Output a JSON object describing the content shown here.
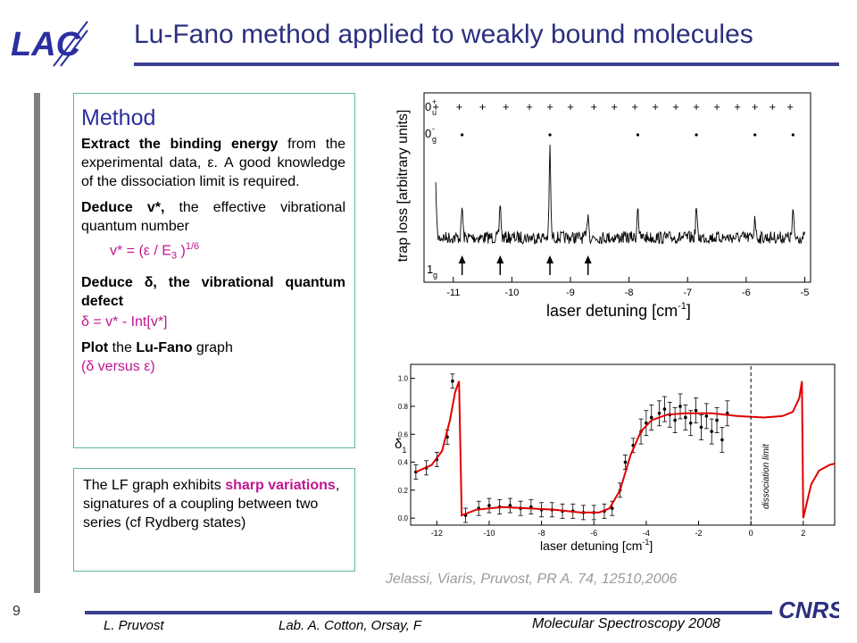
{
  "slide": {
    "title": "Lu-Fano method applied to weakly bound molecules",
    "logo_text": "LAC",
    "number": "9",
    "footer": {
      "author": "L. Pruvost",
      "lab": "Lab. A. Cotton, Orsay, F",
      "conference": "Molecular Spectroscopy  2008"
    },
    "cnrs_logo": "CNRS",
    "citation": "Jelassi, Viaris, Pruvost, PR A. 74, 12510,2006"
  },
  "method": {
    "heading": "Method",
    "p1_bold": "Extract the binding energy",
    "p1_rest": "from the experimental data, ε. A good knowledge of the dissociation limit  is required.",
    "p2_bold": "Deduce v*,",
    "p2_rest": "the effective vibrational quantum number",
    "vstar_formula": "v* = (ε / E",
    "vstar_sub": "3",
    "vstar_close": " )",
    "vstar_sup": "1/6",
    "p3_bold": "Deduce δ, the vibrational quantum defect",
    "delta_formula": "δ = v* - Int[v*]",
    "p4_bold1": "Plot",
    "p4_mid": "the",
    "p4_bold2": "Lu-Fano",
    "p4_rest": "graph",
    "p4_paren": "(δ versus ε)"
  },
  "lf_note": {
    "text_before": "The LF graph exhibits",
    "highlight": "sharp variations",
    "text_after": ", signatures of a coupling between two series (cf Rydberg states)"
  },
  "chart_data": [
    {
      "type": "line",
      "title": "",
      "xlabel": "laser detuning [cm",
      "xlabel_sup": "-1",
      "xlabel_close": "]",
      "ylabel": "trap loss [arbitrary units]",
      "xlim": [
        -11.5,
        -4.9
      ],
      "xticks": [
        "-11",
        "-10",
        "-9",
        "-8",
        "-7",
        "-6",
        "-5"
      ],
      "xtick_values": [
        -11,
        -10,
        -9,
        -8,
        -7,
        -6,
        -5
      ],
      "series_labels": [
        {
          "label": "0",
          "sup": "+",
          "sub": "u",
          "marker": "+"
        },
        {
          "label": "0",
          "sup": "-",
          "sub": "g",
          "marker": "."
        },
        {
          "label": "1",
          "sub": "g",
          "marker": "arrow"
        }
      ],
      "plus_positions": [
        -11.3,
        -10.9,
        -10.5,
        -10.1,
        -9.7,
        -9.35,
        -9.0,
        -8.6,
        -8.25,
        -7.9,
        -7.55,
        -7.2,
        -6.85,
        -6.5,
        -6.15,
        -5.85,
        -5.55,
        -5.25
      ],
      "dot_positions": [
        -10.85,
        -9.35,
        -7.85,
        -6.85,
        -5.85,
        -5.2
      ],
      "arrow_positions": [
        -10.85,
        -10.2,
        -9.35,
        -8.7
      ],
      "peaks": [
        {
          "x": -11.3,
          "h": 0.55
        },
        {
          "x": -10.85,
          "h": 0.35
        },
        {
          "x": -10.2,
          "h": 0.4
        },
        {
          "x": -9.35,
          "h": 1.0
        },
        {
          "x": -8.7,
          "h": 0.3
        },
        {
          "x": -7.85,
          "h": 0.38
        },
        {
          "x": -6.85,
          "h": 0.35
        },
        {
          "x": -5.85,
          "h": 0.25
        },
        {
          "x": -5.2,
          "h": 0.3
        }
      ]
    },
    {
      "type": "scatter",
      "title": "",
      "xlabel": "laser detuning   [cm",
      "xlabel_sup": "-1",
      "xlabel_close": "]",
      "ylabel": "δ",
      "ylabel_sub": "1",
      "xlim": [
        -13,
        3.2
      ],
      "ylim": [
        -0.05,
        1.1
      ],
      "xticks": [
        "-12",
        "-10",
        "-8",
        "-6",
        "-4",
        "-2",
        "0",
        "2"
      ],
      "xtick_values": [
        -12,
        -10,
        -8,
        -6,
        -4,
        -2,
        0,
        2
      ],
      "yticks": [
        "0.0",
        "0.2",
        "0.4",
        "0.6",
        "0.8",
        "1.0"
      ],
      "ytick_values": [
        0,
        0.2,
        0.4,
        0.6,
        0.8,
        1.0
      ],
      "annotation": "dissociation limit",
      "annotation_x": 0,
      "points": [
        [
          -12.8,
          0.33
        ],
        [
          -12.4,
          0.36
        ],
        [
          -12.0,
          0.42
        ],
        [
          -11.6,
          0.58
        ],
        [
          -11.4,
          0.98
        ],
        [
          -10.9,
          0.02
        ],
        [
          -10.4,
          0.07
        ],
        [
          -10.0,
          0.09
        ],
        [
          -9.6,
          0.08
        ],
        [
          -9.2,
          0.09
        ],
        [
          -8.8,
          0.07
        ],
        [
          -8.4,
          0.08
        ],
        [
          -8.0,
          0.06
        ],
        [
          -7.6,
          0.06
        ],
        [
          -7.2,
          0.05
        ],
        [
          -6.8,
          0.05
        ],
        [
          -6.4,
          0.04
        ],
        [
          -6.0,
          0.04
        ],
        [
          -5.6,
          0.05
        ],
        [
          -5.3,
          0.07
        ],
        [
          -5.0,
          0.2
        ],
        [
          -4.8,
          0.4
        ],
        [
          -4.5,
          0.52
        ],
        [
          -4.2,
          0.62
        ],
        [
          -4.0,
          0.68
        ],
        [
          -3.8,
          0.72
        ],
        [
          -3.5,
          0.75
        ],
        [
          -3.3,
          0.78
        ],
        [
          -3.1,
          0.74
        ],
        [
          -2.9,
          0.7
        ],
        [
          -2.7,
          0.8
        ],
        [
          -2.5,
          0.72
        ],
        [
          -2.3,
          0.68
        ],
        [
          -2.1,
          0.77
        ],
        [
          -1.9,
          0.65
        ],
        [
          -1.7,
          0.73
        ],
        [
          -1.5,
          0.62
        ],
        [
          -1.3,
          0.7
        ],
        [
          -1.1,
          0.56
        ],
        [
          -0.9,
          0.75
        ]
      ],
      "fit_curve": [
        [
          -12.8,
          0.33
        ],
        [
          -12.2,
          0.38
        ],
        [
          -11.8,
          0.48
        ],
        [
          -11.5,
          0.7
        ],
        [
          -11.3,
          0.9
        ],
        [
          -11.15,
          0.98
        ],
        [
          -11.05,
          0.02
        ],
        [
          -10.5,
          0.06
        ],
        [
          -9.5,
          0.08
        ],
        [
          -8.5,
          0.07
        ],
        [
          -7.5,
          0.06
        ],
        [
          -6.5,
          0.04
        ],
        [
          -5.8,
          0.04
        ],
        [
          -5.4,
          0.07
        ],
        [
          -5.0,
          0.2
        ],
        [
          -4.6,
          0.45
        ],
        [
          -4.2,
          0.62
        ],
        [
          -3.8,
          0.7
        ],
        [
          -3.2,
          0.74
        ],
        [
          -2.5,
          0.75
        ],
        [
          -1.5,
          0.75
        ],
        [
          -0.5,
          0.73
        ],
        [
          0.5,
          0.72
        ],
        [
          1.2,
          0.73
        ],
        [
          1.6,
          0.76
        ],
        [
          1.85,
          0.86
        ],
        [
          1.95,
          0.98
        ],
        [
          2.0,
          0.0
        ],
        [
          2.1,
          0.08
        ],
        [
          2.3,
          0.24
        ],
        [
          2.6,
          0.34
        ],
        [
          3.0,
          0.38
        ],
        [
          3.2,
          0.39
        ]
      ]
    }
  ]
}
